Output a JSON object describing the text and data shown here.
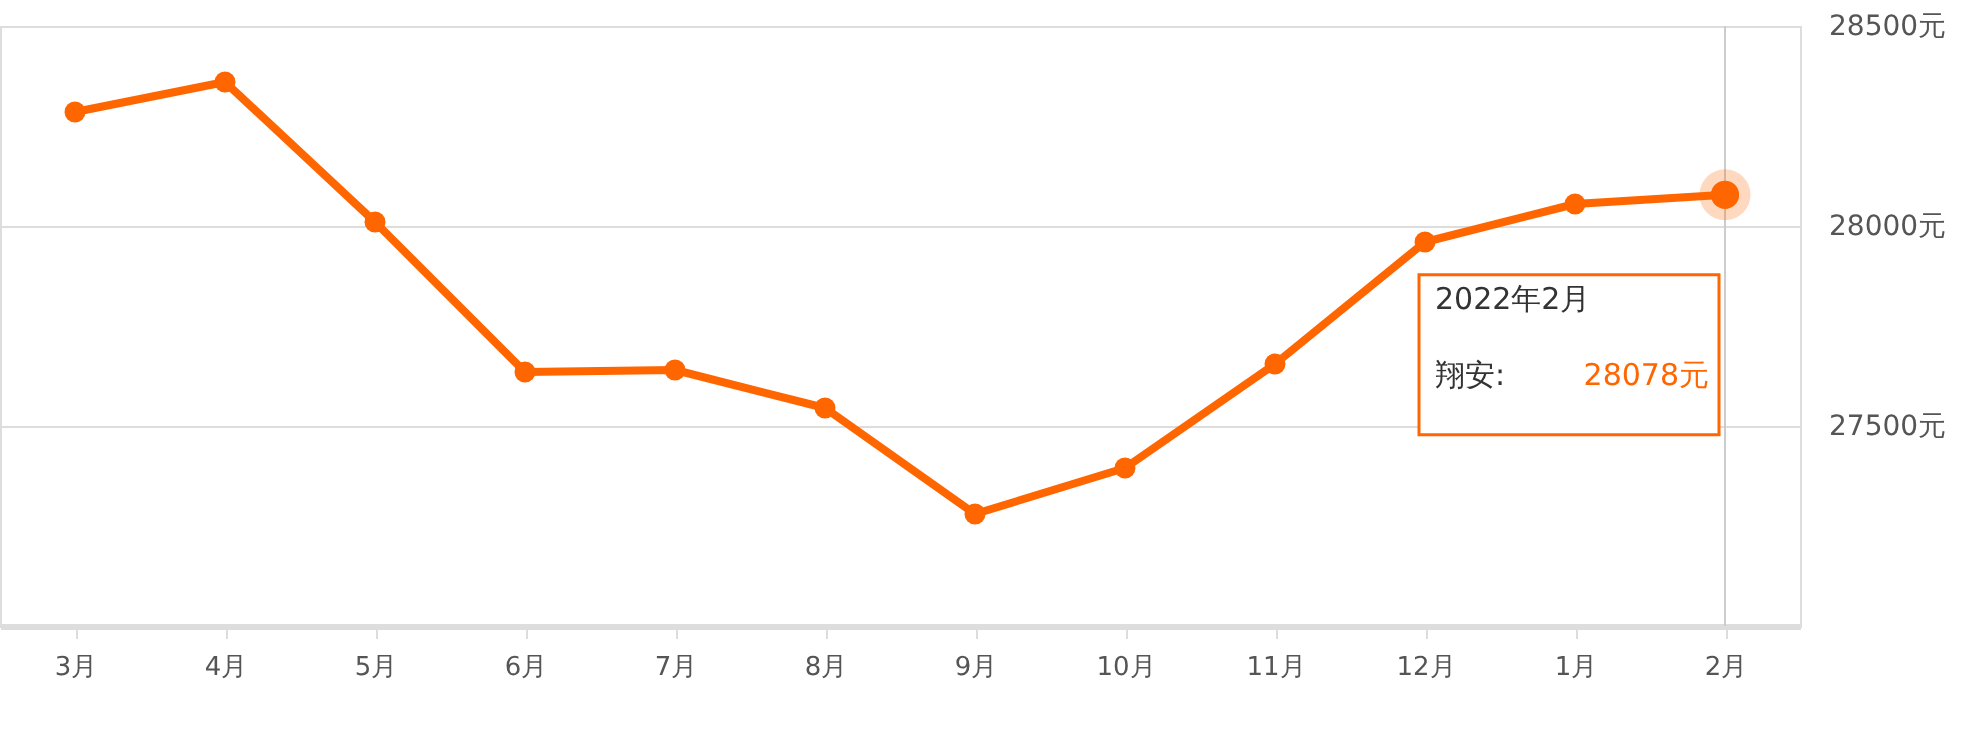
{
  "chart_data": {
    "type": "line",
    "categories": [
      "3月",
      "4月",
      "5月",
      "6月",
      "7月",
      "8月",
      "9月",
      "10月",
      "11月",
      "12月",
      "1月",
      "2月"
    ],
    "series": [
      {
        "color": "#ff6600",
        "values": [
          28285,
          28360,
          28010,
          27635,
          27640,
          27545,
          27280,
          27395,
          27655,
          27960,
          28055,
          28078
        ]
      }
    ],
    "ylim": [
      27000,
      28500
    ],
    "yticks": [
      {
        "value": 27500,
        "label": "27500元"
      },
      {
        "value": 28000,
        "label": "28000元"
      },
      {
        "value": 28500,
        "label": "28500元"
      }
    ],
    "grid": "y",
    "marker": "circle",
    "line_style": "solid",
    "ref_lines": [
      {
        "axis": "x",
        "value": "2月",
        "color": "#cccccc"
      }
    ],
    "annotations": [
      "2022年2月",
      "翔安:",
      "28078元"
    ]
  }
}
